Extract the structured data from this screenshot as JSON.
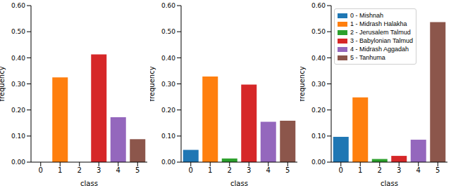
{
  "chart_data": [
    {
      "type": "bar",
      "categories": [
        "0",
        "1",
        "2",
        "3",
        "4",
        "5"
      ],
      "values": [
        0,
        0.325,
        0,
        0.413,
        0.172,
        0.088
      ],
      "colors": [
        "#1f77b4",
        "#ff7f0e",
        "#2ca02c",
        "#d62728",
        "#9467bd",
        "#8c564b"
      ],
      "x_label": "class",
      "y_label": "frequency",
      "ylim": [
        0,
        0.6
      ],
      "yticks": [
        {
          "value": 0,
          "label": "0.00"
        },
        {
          "value": 0.1,
          "label": "0.10"
        },
        {
          "value": 0.2,
          "label": "0.20"
        },
        {
          "value": 0.3,
          "label": "0.30"
        },
        {
          "value": 0.4,
          "label": "0.40"
        },
        {
          "value": 0.5,
          "label": "0.50"
        },
        {
          "value": 0.6,
          "label": "0.60"
        }
      ]
    },
    {
      "type": "bar",
      "categories": [
        "0",
        "1",
        "2",
        "3",
        "4",
        "5"
      ],
      "values": [
        0.047,
        0.328,
        0.014,
        0.297,
        0.155,
        0.159
      ],
      "colors": [
        "#1f77b4",
        "#ff7f0e",
        "#2ca02c",
        "#d62728",
        "#9467bd",
        "#8c564b"
      ],
      "x_label": "class",
      "y_label": "frequency",
      "ylim": [
        0,
        0.6
      ],
      "yticks": [
        {
          "value": 0,
          "label": "0.00"
        },
        {
          "value": 0.1,
          "label": "0.10"
        },
        {
          "value": 0.2,
          "label": "0.20"
        },
        {
          "value": 0.3,
          "label": "0.30"
        },
        {
          "value": 0.4,
          "label": "0.40"
        },
        {
          "value": 0.5,
          "label": "0.50"
        },
        {
          "value": 0.6,
          "label": "0.60"
        }
      ]
    },
    {
      "type": "bar",
      "categories": [
        "0",
        "1",
        "2",
        "3",
        "4",
        "5"
      ],
      "values": [
        0.097,
        0.248,
        0.012,
        0.024,
        0.086,
        0.537
      ],
      "colors": [
        "#1f77b4",
        "#ff7f0e",
        "#2ca02c",
        "#d62728",
        "#9467bd",
        "#8c564b"
      ],
      "x_label": "class",
      "y_label": "frequency",
      "ylim": [
        0,
        0.6
      ],
      "yticks": [
        {
          "value": 0,
          "label": "0.00"
        },
        {
          "value": 0.1,
          "label": "0.10"
        },
        {
          "value": 0.2,
          "label": "0.20"
        },
        {
          "value": 0.3,
          "label": "0.30"
        },
        {
          "value": 0.4,
          "label": "0.40"
        },
        {
          "value": 0.5,
          "label": "0.50"
        },
        {
          "value": 0.6,
          "label": "0.60"
        }
      ],
      "legend": "upper right",
      "legend_labels": [
        "0 - Mishnah",
        "1 - Midrash Halakha",
        "2 - Jerusalem Talmud",
        "3 - Babylonian Talmud",
        "4 - Midrash Aggadah",
        "5 - Tanhuma"
      ]
    }
  ]
}
